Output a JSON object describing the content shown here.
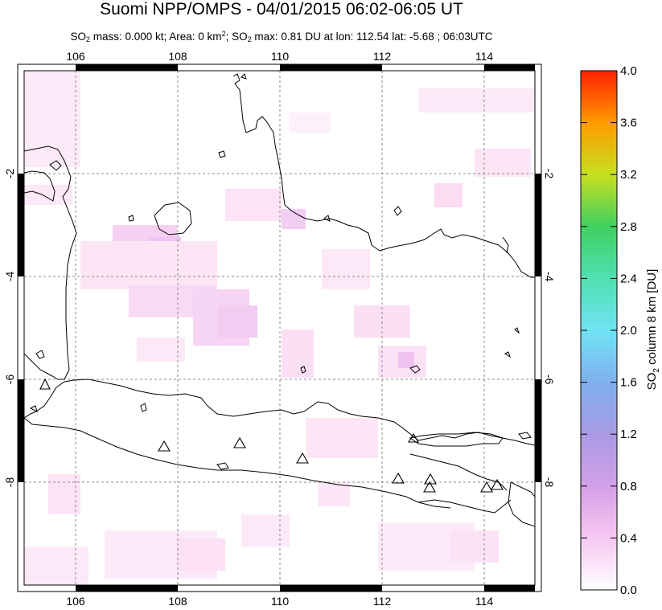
{
  "title": "Suomi NPP/OMPS - 04/01/2015 06:02-06:05 UT",
  "subtitle": {
    "so2_prefix": "SO",
    "so2_sub": "2",
    "mass_text": " mass: 0.000 kt; Area: 0 km",
    "area_sup": "2",
    "so2_max_prefix": "; SO",
    "so2_max_sub": "2",
    "rest_text": " max: 0.81 DU at lon: 112.54 lat: -5.68 ; 06:03UTC"
  },
  "map": {
    "lon_range": [
      105,
      115
    ],
    "lat_range": [
      -10,
      0
    ],
    "lon_ticks": [
      "106",
      "108",
      "110",
      "112",
      "114"
    ],
    "lat_ticks": [
      "-2",
      "-4",
      "-6",
      "-8"
    ]
  },
  "colorbar": {
    "min": 0.0,
    "max": 4.0,
    "labels": [
      "4.0",
      "3.6",
      "3.2",
      "2.8",
      "2.4",
      "2.0",
      "1.6",
      "1.2",
      "0.8",
      "0.4",
      "0.0"
    ],
    "title_prefix": "SO",
    "title_sub": "2",
    "title_rest": " column 8 km [DU]"
  },
  "volcano_icon": "triangle-outline-icon",
  "colors": {
    "coastline": "#000000",
    "grid": "#888888",
    "low": "#ffffff",
    "high": "#ff2000"
  }
}
